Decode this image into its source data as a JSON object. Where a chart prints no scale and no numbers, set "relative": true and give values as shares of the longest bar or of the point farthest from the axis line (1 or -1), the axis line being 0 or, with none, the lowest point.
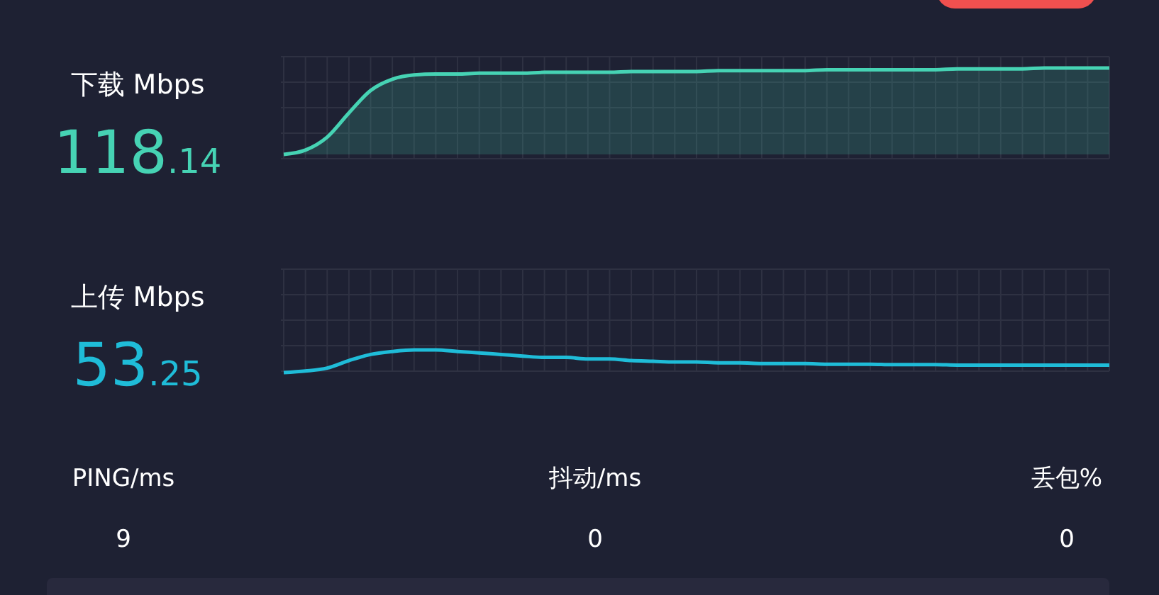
{
  "chart_data": [
    {
      "type": "area",
      "title": "下载 Mbps",
      "annotations": [
        "118.14"
      ],
      "relative": true,
      "grid": true,
      "categories": [
        null,
        null,
        null,
        null,
        null,
        null,
        null,
        null,
        null,
        null,
        null,
        null,
        null,
        null,
        null,
        null,
        null,
        null,
        null,
        null,
        null,
        null,
        null,
        null,
        null,
        null,
        null,
        null,
        null,
        null,
        null,
        null,
        null,
        null,
        null,
        null,
        null,
        null,
        null
      ],
      "series": [
        {
          "color": "#46d3b4",
          "values": [
            0,
            0.05,
            0.2,
            0.48,
            0.74,
            0.87,
            0.92,
            0.93,
            0.93,
            0.94,
            0.94,
            0.94,
            0.95,
            0.95,
            0.95,
            0.95,
            0.96,
            0.96,
            0.96,
            0.96,
            0.97,
            0.97,
            0.97,
            0.97,
            0.97,
            0.98,
            0.98,
            0.98,
            0.98,
            0.98,
            0.98,
            0.99,
            0.99,
            0.99,
            0.99,
            1,
            1,
            1,
            1
          ]
        }
      ]
    },
    {
      "type": "line",
      "title": "上传 Mbps",
      "annotations": [
        "53.25"
      ],
      "relative": true,
      "grid": true,
      "categories": [
        null,
        null,
        null,
        null,
        null,
        null,
        null,
        null,
        null,
        null,
        null,
        null,
        null,
        null,
        null,
        null,
        null,
        null,
        null,
        null,
        null,
        null,
        null,
        null,
        null,
        null,
        null,
        null,
        null,
        null,
        null,
        null,
        null,
        null,
        null,
        null,
        null,
        null,
        null
      ],
      "series": [
        {
          "color": "#1fbcd8",
          "values": [
            0,
            0.07,
            0.2,
            0.53,
            0.8,
            0.93,
            1,
            1,
            0.93,
            0.87,
            0.8,
            0.73,
            0.67,
            0.67,
            0.6,
            0.6,
            0.53,
            0.5,
            0.47,
            0.47,
            0.43,
            0.43,
            0.4,
            0.4,
            0.4,
            0.37,
            0.37,
            0.37,
            0.35,
            0.35,
            0.35,
            0.33,
            0.33,
            0.33,
            0.33,
            0.33,
            0.33,
            0.33,
            0.33
          ]
        }
      ]
    },
    {
      "type": "other",
      "categories": [
        "PING/ms",
        "抖动/ms",
        "丢包%"
      ],
      "values": [
        9,
        0,
        0
      ],
      "data_labels": true
    }
  ]
}
